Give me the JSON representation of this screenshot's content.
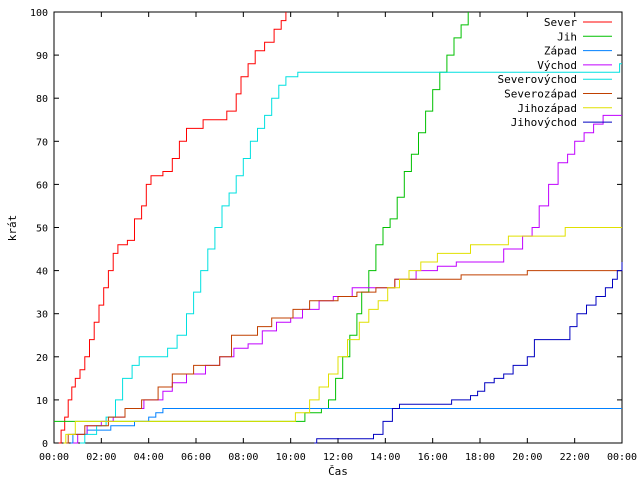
{
  "chart_data": {
    "type": "line",
    "title": "",
    "xlabel": "Čas",
    "ylabel": "krát",
    "ylim": [
      0,
      100
    ],
    "xlim": [
      0,
      24
    ],
    "x_ticks": [
      "00:00",
      "02:00",
      "04:00",
      "06:00",
      "08:00",
      "10:00",
      "12:00",
      "14:00",
      "16:00",
      "18:00",
      "20:00",
      "22:00",
      "00:00"
    ],
    "y_ticks": [
      0,
      10,
      20,
      30,
      40,
      50,
      60,
      70,
      80,
      90,
      100
    ],
    "grid": false,
    "legend_position": "top-right",
    "series": [
      {
        "name": "Sever",
        "color": "#ff0000",
        "points": [
          [
            0.2,
            0
          ],
          [
            0.3,
            3
          ],
          [
            0.45,
            6
          ],
          [
            0.6,
            10
          ],
          [
            0.75,
            13
          ],
          [
            0.9,
            15
          ],
          [
            1.1,
            17
          ],
          [
            1.3,
            20
          ],
          [
            1.5,
            24
          ],
          [
            1.7,
            28
          ],
          [
            1.9,
            32
          ],
          [
            2.1,
            36
          ],
          [
            2.3,
            40
          ],
          [
            2.5,
            44
          ],
          [
            2.7,
            46
          ],
          [
            3.1,
            47
          ],
          [
            3.4,
            52
          ],
          [
            3.7,
            55
          ],
          [
            3.9,
            60
          ],
          [
            4.1,
            62
          ],
          [
            4.6,
            63
          ],
          [
            5.0,
            66
          ],
          [
            5.3,
            70
          ],
          [
            5.6,
            73
          ],
          [
            6.3,
            75
          ],
          [
            7.3,
            77
          ],
          [
            7.7,
            81
          ],
          [
            7.9,
            85
          ],
          [
            8.2,
            88
          ],
          [
            8.5,
            91
          ],
          [
            8.9,
            93
          ],
          [
            9.3,
            96
          ],
          [
            9.6,
            98
          ],
          [
            9.8,
            100
          ]
        ]
      },
      {
        "name": "Jih",
        "color": "#00c000",
        "points": [
          [
            0.0,
            5
          ],
          [
            10.5,
            5
          ],
          [
            10.6,
            7
          ],
          [
            11.3,
            8
          ],
          [
            11.6,
            10
          ],
          [
            11.9,
            15
          ],
          [
            12.2,
            20
          ],
          [
            12.5,
            25
          ],
          [
            12.8,
            30
          ],
          [
            13.0,
            35
          ],
          [
            13.3,
            40
          ],
          [
            13.6,
            46
          ],
          [
            13.9,
            50
          ],
          [
            14.2,
            52
          ],
          [
            14.5,
            57
          ],
          [
            14.8,
            63
          ],
          [
            15.1,
            67
          ],
          [
            15.4,
            72
          ],
          [
            15.7,
            77
          ],
          [
            16.0,
            82
          ],
          [
            16.3,
            86
          ],
          [
            16.6,
            90
          ],
          [
            16.9,
            94
          ],
          [
            17.2,
            97
          ],
          [
            17.5,
            100
          ]
        ]
      },
      {
        "name": "Západ",
        "color": "#0080ff",
        "points": [
          [
            0.7,
            0
          ],
          [
            0.8,
            2
          ],
          [
            1.4,
            3
          ],
          [
            2.4,
            4
          ],
          [
            3.4,
            5
          ],
          [
            4.0,
            6
          ],
          [
            4.3,
            7
          ],
          [
            4.6,
            8
          ],
          [
            24,
            8
          ]
        ]
      },
      {
        "name": "Východ",
        "color": "#c000ff",
        "points": [
          [
            0.8,
            0
          ],
          [
            1.0,
            2
          ],
          [
            1.4,
            4
          ],
          [
            2.0,
            5
          ],
          [
            2.5,
            6
          ],
          [
            3.0,
            8
          ],
          [
            3.8,
            10
          ],
          [
            4.6,
            12
          ],
          [
            5.0,
            14
          ],
          [
            5.6,
            16
          ],
          [
            6.4,
            18
          ],
          [
            7.0,
            20
          ],
          [
            7.6,
            22
          ],
          [
            8.2,
            23
          ],
          [
            8.8,
            26
          ],
          [
            9.4,
            28
          ],
          [
            10.0,
            29
          ],
          [
            10.5,
            31
          ],
          [
            11.2,
            33
          ],
          [
            11.8,
            34
          ],
          [
            12.6,
            36
          ],
          [
            13.6,
            36
          ],
          [
            14.4,
            38
          ],
          [
            15.3,
            40
          ],
          [
            16.2,
            41
          ],
          [
            17.0,
            42
          ],
          [
            19.0,
            45
          ],
          [
            19.8,
            48
          ],
          [
            20.2,
            50
          ],
          [
            20.5,
            55
          ],
          [
            20.9,
            60
          ],
          [
            21.3,
            65
          ],
          [
            21.7,
            67
          ],
          [
            22.0,
            70
          ],
          [
            22.4,
            72
          ],
          [
            22.8,
            74
          ],
          [
            23.2,
            76
          ],
          [
            24,
            76
          ]
        ]
      },
      {
        "name": "Severovýchod",
        "color": "#00e0e0",
        "points": [
          [
            1.1,
            0
          ],
          [
            1.3,
            2
          ],
          [
            1.8,
            4
          ],
          [
            2.2,
            6
          ],
          [
            2.6,
            10
          ],
          [
            2.9,
            15
          ],
          [
            3.3,
            18
          ],
          [
            3.6,
            20
          ],
          [
            4.8,
            22
          ],
          [
            5.2,
            25
          ],
          [
            5.6,
            30
          ],
          [
            5.9,
            35
          ],
          [
            6.2,
            40
          ],
          [
            6.5,
            45
          ],
          [
            6.8,
            50
          ],
          [
            7.1,
            55
          ],
          [
            7.4,
            58
          ],
          [
            7.7,
            62
          ],
          [
            8.0,
            66
          ],
          [
            8.3,
            70
          ],
          [
            8.6,
            73
          ],
          [
            8.9,
            76
          ],
          [
            9.2,
            80
          ],
          [
            9.5,
            83
          ],
          [
            9.8,
            85
          ],
          [
            10.3,
            86
          ],
          [
            23.8,
            86
          ],
          [
            23.9,
            88
          ],
          [
            24,
            88
          ]
        ]
      },
      {
        "name": "Severozápad",
        "color": "#c04000",
        "points": [
          [
            0.5,
            0
          ],
          [
            0.6,
            2
          ],
          [
            1.3,
            4
          ],
          [
            2.3,
            6
          ],
          [
            3.0,
            8
          ],
          [
            3.7,
            10
          ],
          [
            4.4,
            13
          ],
          [
            5.0,
            16
          ],
          [
            5.9,
            18
          ],
          [
            7.0,
            20
          ],
          [
            7.5,
            25
          ],
          [
            8.6,
            27
          ],
          [
            9.2,
            29
          ],
          [
            10.1,
            31
          ],
          [
            10.8,
            33
          ],
          [
            12.0,
            34
          ],
          [
            12.8,
            35
          ],
          [
            13.6,
            36
          ],
          [
            14.4,
            38
          ],
          [
            16.0,
            38
          ],
          [
            17.2,
            39
          ],
          [
            20.0,
            40
          ],
          [
            24,
            40
          ]
        ]
      },
      {
        "name": "Jihozápad",
        "color": "#e0e000",
        "points": [
          [
            0.4,
            0
          ],
          [
            0.5,
            2
          ],
          [
            0.9,
            5
          ],
          [
            3.0,
            5
          ],
          [
            9.8,
            5
          ],
          [
            10.2,
            7
          ],
          [
            10.8,
            10
          ],
          [
            11.2,
            13
          ],
          [
            11.6,
            16
          ],
          [
            12.0,
            20
          ],
          [
            12.4,
            24
          ],
          [
            12.9,
            28
          ],
          [
            13.3,
            31
          ],
          [
            13.7,
            33
          ],
          [
            14.1,
            36
          ],
          [
            14.6,
            38
          ],
          [
            15.0,
            40
          ],
          [
            15.5,
            42
          ],
          [
            16.2,
            44
          ],
          [
            17.6,
            46
          ],
          [
            19.2,
            48
          ],
          [
            21.6,
            50
          ],
          [
            24,
            50
          ]
        ]
      },
      {
        "name": "Jihovýchod",
        "color": "#0000c0",
        "points": [
          [
            11.0,
            0
          ],
          [
            11.1,
            1
          ],
          [
            13.5,
            2
          ],
          [
            13.9,
            5
          ],
          [
            14.3,
            8
          ],
          [
            14.6,
            9
          ],
          [
            16.8,
            10
          ],
          [
            17.6,
            11
          ],
          [
            17.9,
            12
          ],
          [
            18.2,
            14
          ],
          [
            18.6,
            15
          ],
          [
            19.0,
            16
          ],
          [
            19.4,
            18
          ],
          [
            20.0,
            20
          ],
          [
            20.3,
            24
          ],
          [
            21.4,
            24
          ],
          [
            21.8,
            27
          ],
          [
            22.1,
            30
          ],
          [
            22.5,
            32
          ],
          [
            22.9,
            34
          ],
          [
            23.3,
            36
          ],
          [
            23.6,
            38
          ],
          [
            23.8,
            40
          ],
          [
            24,
            42
          ]
        ]
      }
    ]
  }
}
